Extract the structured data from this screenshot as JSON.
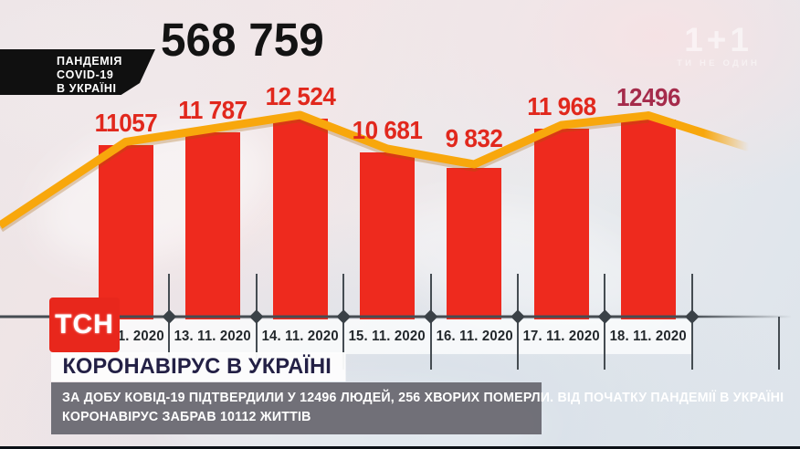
{
  "badge": {
    "lines": [
      "ПАНДЕМІЯ",
      "COVID-19",
      "В УКРАЇНІ"
    ]
  },
  "total_counter": "568 759",
  "channel": {
    "logo": "1+1",
    "slogan": "ТИ НЕ ОДИН"
  },
  "tsn": {
    "logo": "ТСН"
  },
  "lower_third": {
    "headline": "КОРОНАВІРУС В УКРАЇНІ",
    "ticker_lines": [
      "ЗА ДОБУ КОВІД-19 ПІДТВЕРДИЛИ У 12496 ЛЮДЕЙ, 256 ХВОРИХ ПОМЕРЛИ. ВІД ПОЧАТКУ ПАНДЕМІЇ В УКРАЇНІ",
      "КОРОНАВІРУС ЗАБРАВ 10112 ЖИТТІВ"
    ]
  },
  "chart_data": {
    "type": "bar",
    "title": "568 759",
    "categories": [
      "12. 11. 2020",
      "13. 11. 2020",
      "14. 11. 2020",
      "15. 11. 2020",
      "16. 11. 2020",
      "17. 11. 2020",
      "18. 11. 2020"
    ],
    "values": [
      11057,
      11787,
      12524,
      10681,
      9832,
      11968,
      12496
    ],
    "value_labels": [
      "11057",
      "11 787",
      "12 524",
      "10 681",
      "9 832",
      "11 968",
      "12496"
    ],
    "overlay_line": "orange trend line following bar tops, entering from lower-left and fading out lower-right",
    "legend": "none",
    "grid": "off",
    "colors": {
      "bar": "#ee2a1e",
      "line": "#f8a70c",
      "value_label": "#e1281d",
      "value_label_last": "#a52b4b",
      "axis": "#454c52",
      "x_label_text": "#23282c"
    }
  }
}
